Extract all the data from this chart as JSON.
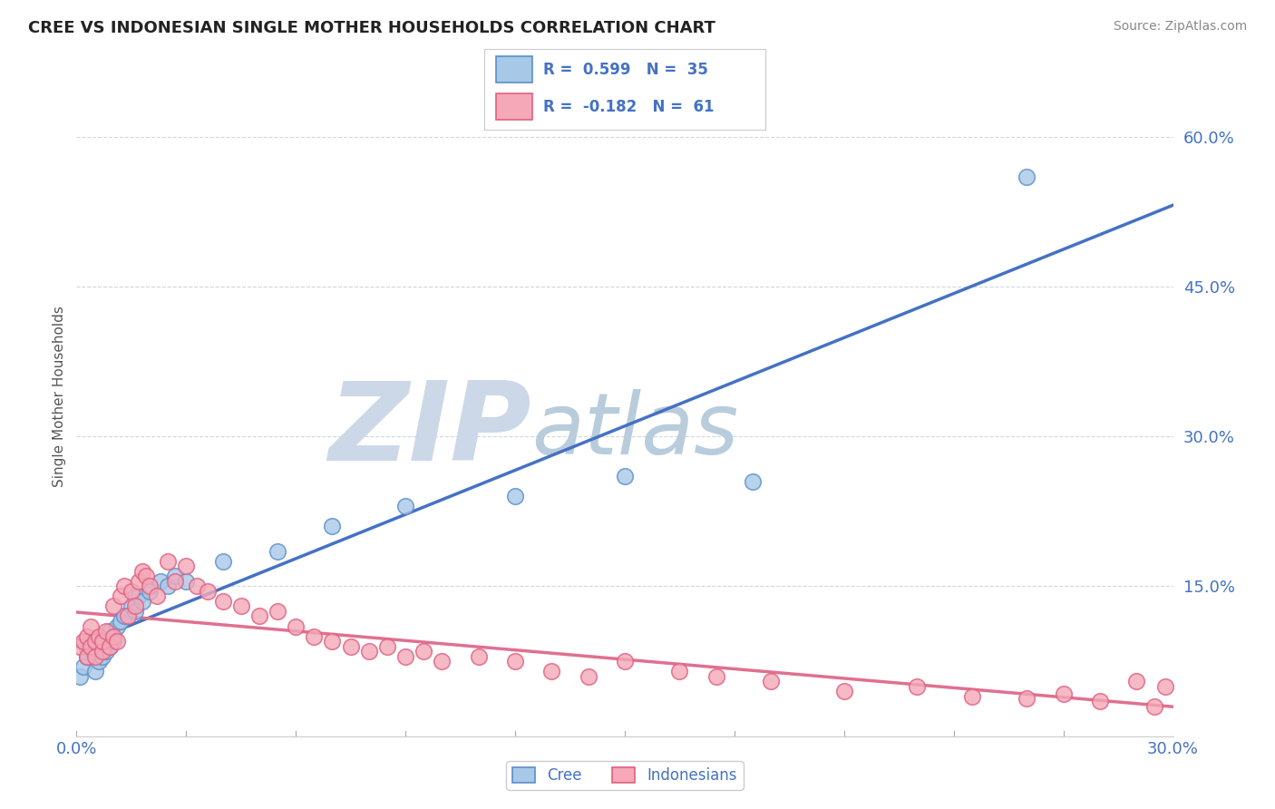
{
  "title": "CREE VS INDONESIAN SINGLE MOTHER HOUSEHOLDS CORRELATION CHART",
  "source": "Source: ZipAtlas.com",
  "ylabel": "Single Mother Households",
  "ylim": [
    0.0,
    0.68
  ],
  "xlim": [
    0.0,
    0.3
  ],
  "yticks": [
    0.0,
    0.15,
    0.3,
    0.45,
    0.6
  ],
  "ytick_labels": [
    "",
    "15.0%",
    "30.0%",
    "45.0%",
    "60.0%"
  ],
  "xtick_labels": [
    "0.0%",
    "30.0%"
  ],
  "cree_color": "#a8c8e8",
  "indonesian_color": "#f4a8b8",
  "cree_edge_color": "#5b8fc9",
  "indonesian_edge_color": "#e06080",
  "cree_line_color": "#4472c4",
  "indonesian_line_color": "#e07090",
  "cree_R": 0.599,
  "cree_N": 35,
  "indonesian_R": -0.182,
  "indonesian_N": 61,
  "background": "#ffffff",
  "watermark_zip": "ZIP",
  "watermark_atlas": "atlas",
  "watermark_color": "#ccd8e8",
  "grid_color": "#d0d8e0",
  "legend_text_color": "#4472c4",
  "cree_x": [
    0.001,
    0.002,
    0.003,
    0.003,
    0.004,
    0.005,
    0.005,
    0.006,
    0.006,
    0.007,
    0.007,
    0.008,
    0.009,
    0.009,
    0.01,
    0.011,
    0.012,
    0.013,
    0.015,
    0.016,
    0.017,
    0.018,
    0.02,
    0.023,
    0.025,
    0.027,
    0.03,
    0.04,
    0.055,
    0.07,
    0.09,
    0.12,
    0.15,
    0.185,
    0.26
  ],
  "cree_y": [
    0.06,
    0.07,
    0.08,
    0.09,
    0.095,
    0.065,
    0.085,
    0.075,
    0.09,
    0.08,
    0.095,
    0.085,
    0.09,
    0.105,
    0.095,
    0.11,
    0.115,
    0.12,
    0.13,
    0.125,
    0.14,
    0.135,
    0.145,
    0.155,
    0.15,
    0.16,
    0.155,
    0.175,
    0.185,
    0.21,
    0.23,
    0.24,
    0.26,
    0.255,
    0.56
  ],
  "indonesian_x": [
    0.001,
    0.002,
    0.003,
    0.003,
    0.004,
    0.004,
    0.005,
    0.005,
    0.006,
    0.007,
    0.007,
    0.008,
    0.009,
    0.01,
    0.01,
    0.011,
    0.012,
    0.013,
    0.014,
    0.015,
    0.016,
    0.017,
    0.018,
    0.019,
    0.02,
    0.022,
    0.025,
    0.027,
    0.03,
    0.033,
    0.036,
    0.04,
    0.045,
    0.05,
    0.055,
    0.06,
    0.065,
    0.07,
    0.075,
    0.08,
    0.085,
    0.09,
    0.095,
    0.1,
    0.11,
    0.12,
    0.13,
    0.14,
    0.15,
    0.165,
    0.175,
    0.19,
    0.21,
    0.23,
    0.245,
    0.26,
    0.27,
    0.28,
    0.29,
    0.295,
    0.298
  ],
  "indonesian_y": [
    0.09,
    0.095,
    0.1,
    0.08,
    0.09,
    0.11,
    0.095,
    0.08,
    0.1,
    0.085,
    0.095,
    0.105,
    0.09,
    0.1,
    0.13,
    0.095,
    0.14,
    0.15,
    0.12,
    0.145,
    0.13,
    0.155,
    0.165,
    0.16,
    0.15,
    0.14,
    0.175,
    0.155,
    0.17,
    0.15,
    0.145,
    0.135,
    0.13,
    0.12,
    0.125,
    0.11,
    0.1,
    0.095,
    0.09,
    0.085,
    0.09,
    0.08,
    0.085,
    0.075,
    0.08,
    0.075,
    0.065,
    0.06,
    0.075,
    0.065,
    0.06,
    0.055,
    0.045,
    0.05,
    0.04,
    0.038,
    0.042,
    0.035,
    0.055,
    0.03,
    0.05
  ]
}
